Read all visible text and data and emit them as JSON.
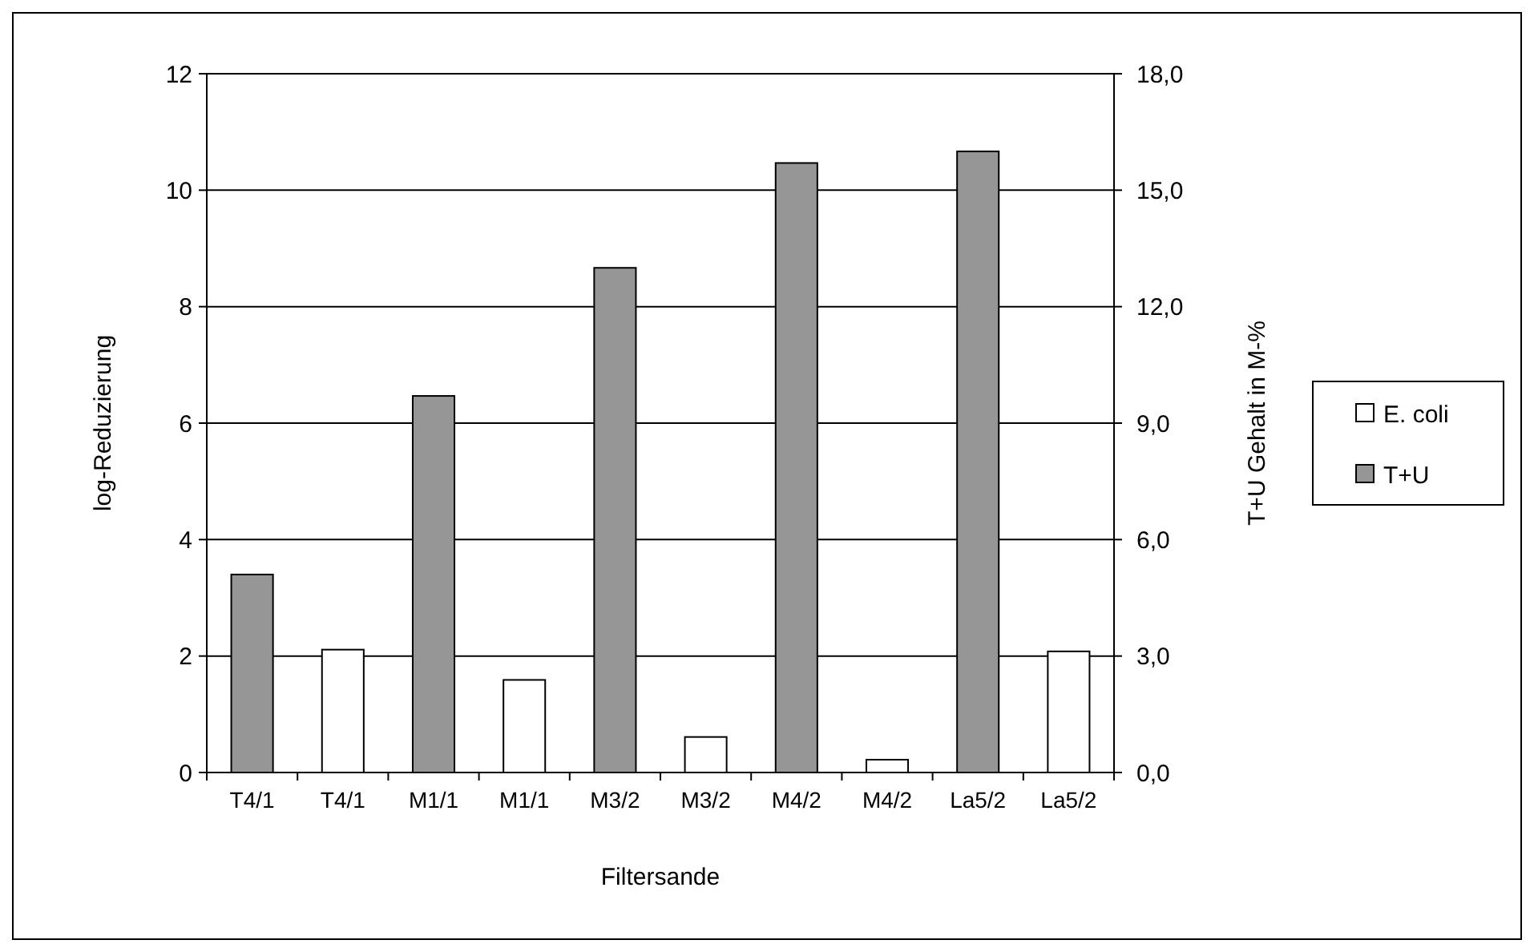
{
  "chart_data": {
    "type": "bar",
    "categories": [
      "T4/1",
      "T4/1",
      "M1/1",
      "M1/1",
      "M3/2",
      "M3/2",
      "M4/2",
      "M4/2",
      "La5/2",
      "La5/2"
    ],
    "series": [
      {
        "name": "E. coli",
        "color": "#ffffff",
        "values": [
          null,
          2.11,
          null,
          1.59,
          null,
          0.61,
          null,
          0.22,
          null,
          2.08
        ]
      },
      {
        "name": "T+U",
        "color": "#969696",
        "axis": "y2",
        "values": [
          5.1,
          null,
          9.7,
          null,
          13.0,
          null,
          15.7,
          null,
          16.0,
          null
        ]
      }
    ],
    "xlabel": "Filtersande",
    "ylabel": "log-Reduzierung",
    "y2label": "T+U Gehalt in M-%",
    "ylim": [
      0,
      12
    ],
    "yticks": [
      0,
      2,
      4,
      6,
      8,
      10,
      12
    ],
    "y2lim": [
      0,
      18
    ],
    "y2ticks": [
      {
        "value": 0,
        "label": "0,0"
      },
      {
        "value": 3,
        "label": "3,0"
      },
      {
        "value": 6,
        "label": "6,0"
      },
      {
        "value": 9,
        "label": "9,0"
      },
      {
        "value": 12,
        "label": "12,0"
      },
      {
        "value": 15,
        "label": "15,0"
      },
      {
        "value": 18,
        "label": "18,0"
      }
    ],
    "grid": "y",
    "legend": "right"
  }
}
